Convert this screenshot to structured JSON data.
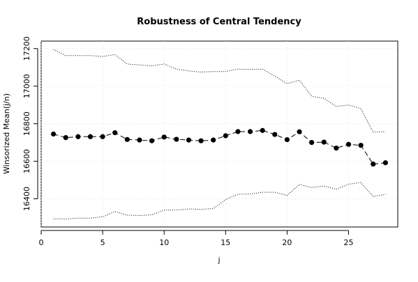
{
  "chart_data": {
    "type": "line",
    "title": "Robustness of Central Tendency",
    "xlabel": "j",
    "ylabel": "Winsorized Mean(j/n)",
    "xlim": [
      0,
      29
    ],
    "ylim": [
      16250,
      17240
    ],
    "x_ticks": [
      0,
      5,
      10,
      15,
      20,
      25
    ],
    "y_ticks": [
      16400,
      16600,
      16800,
      17000,
      17200
    ],
    "grid": true,
    "legend": "none",
    "x": [
      1,
      2,
      3,
      4,
      5,
      6,
      7,
      8,
      9,
      10,
      11,
      12,
      13,
      14,
      15,
      16,
      17,
      18,
      19,
      20,
      21,
      22,
      23,
      24,
      25,
      26,
      27,
      28
    ],
    "series": [
      {
        "name": "",
        "style": "solid-with-points",
        "color": "#000000",
        "values": [
          16745,
          16726,
          16731,
          16731,
          16731,
          16752,
          16716,
          16713,
          16709,
          16729,
          16717,
          16713,
          16709,
          16713,
          16736,
          16758,
          16758,
          16764,
          16743,
          16715,
          16757,
          16700,
          16702,
          16670,
          16690,
          16685,
          16585,
          16592
        ]
      },
      {
        "name": "",
        "style": "dotted",
        "color": "#000000",
        "values": [
          17195,
          17163,
          17163,
          17163,
          17158,
          17168,
          17118,
          17113,
          17108,
          17118,
          17091,
          17081,
          17075,
          17078,
          17078,
          17091,
          17089,
          17091,
          17053,
          17013,
          17032,
          16946,
          16935,
          16892,
          16900,
          16880,
          16755,
          16758
        ]
      },
      {
        "name": "",
        "style": "dotted",
        "color": "#000000",
        "values": [
          16293,
          16293,
          16297,
          16297,
          16305,
          16332,
          16313,
          16311,
          16315,
          16340,
          16340,
          16346,
          16344,
          16348,
          16396,
          16424,
          16426,
          16435,
          16435,
          16418,
          16477,
          16460,
          16468,
          16451,
          16478,
          16487,
          16412,
          16423
        ]
      }
    ]
  }
}
